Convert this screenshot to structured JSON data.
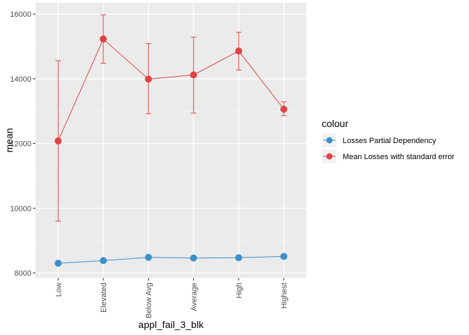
{
  "chart_data": {
    "type": "line",
    "categories": [
      "Low",
      "Elevated",
      "Below Avg",
      "Average",
      "High",
      "Highest"
    ],
    "xlabel": "appl_fail_3_blk",
    "ylabel": "mean",
    "ylim": [
      7850,
      16350
    ],
    "yticks": [
      8000,
      10000,
      12000,
      14000,
      16000
    ],
    "grid": true,
    "legend": {
      "title": "colour",
      "position": "right"
    },
    "series": [
      {
        "name": "Losses Partial Dependency",
        "color": "#3a8fcc",
        "values": [
          8300,
          8380,
          8480,
          8460,
          8470,
          8510
        ]
      },
      {
        "name": "Mean Losses with standard error",
        "color": "#e04343",
        "values": [
          12080,
          15230,
          13990,
          14120,
          14860,
          13060
        ],
        "error_lower": [
          9600,
          14480,
          12920,
          12940,
          14270,
          12860
        ],
        "error_upper": [
          14560,
          15980,
          15090,
          15290,
          15440,
          13290
        ]
      }
    ]
  }
}
